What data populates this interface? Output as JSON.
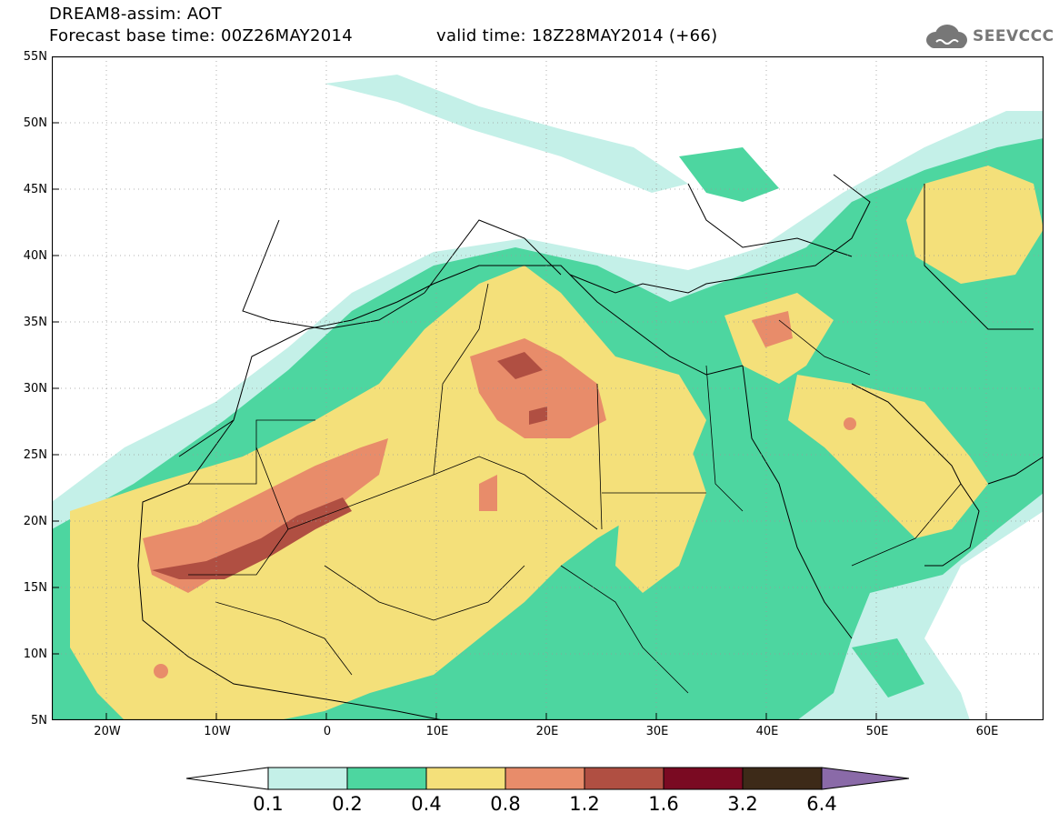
{
  "header": {
    "title_line1": "DREAM8-assim: AOT",
    "base_time": "Forecast base time: 00Z26MAY2014",
    "valid_time": "valid time: 18Z28MAY2014 (+66)"
  },
  "logo": {
    "text": "SEEVCCC",
    "icon": "cloud-icon"
  },
  "map": {
    "lat_labels": [
      "55N",
      "50N",
      "45N",
      "40N",
      "35N",
      "30N",
      "25N",
      "20N",
      "15N",
      "10N",
      "5N"
    ],
    "lon_labels": [
      "20W",
      "10W",
      "0",
      "10E",
      "20E",
      "30E",
      "40E",
      "50E",
      "60E"
    ],
    "extent": {
      "lon": [
        -25,
        65
      ],
      "lat": [
        5,
        55
      ]
    },
    "grid": "dotted"
  },
  "colorbar": {
    "labels": [
      "0.1",
      "0.2",
      "0.4",
      "0.8",
      "1.2",
      "1.6",
      "3.2",
      "6.4"
    ],
    "colors": [
      "#c4f0e8",
      "#4dd6a0",
      "#f4e07a",
      "#e88c6a",
      "#b04f42",
      "#7a0a22",
      "#3d2a18"
    ],
    "under_color": "#ffffff",
    "over_color": "#8a6aa8"
  },
  "chart_data": {
    "type": "heatmap",
    "title": "DREAM8-assim: AOT",
    "variable": "AOT",
    "levels": [
      0.1,
      0.2,
      0.4,
      0.8,
      1.2,
      1.6,
      3.2,
      6.4
    ],
    "xlim": [
      -25,
      65
    ],
    "ylim": [
      5,
      55
    ],
    "max_regions": [
      {
        "lon": -10,
        "lat": 16,
        "level_min": 1.2
      },
      {
        "lon": 17,
        "lat": 31.5,
        "level_min": 1.2
      }
    ]
  }
}
